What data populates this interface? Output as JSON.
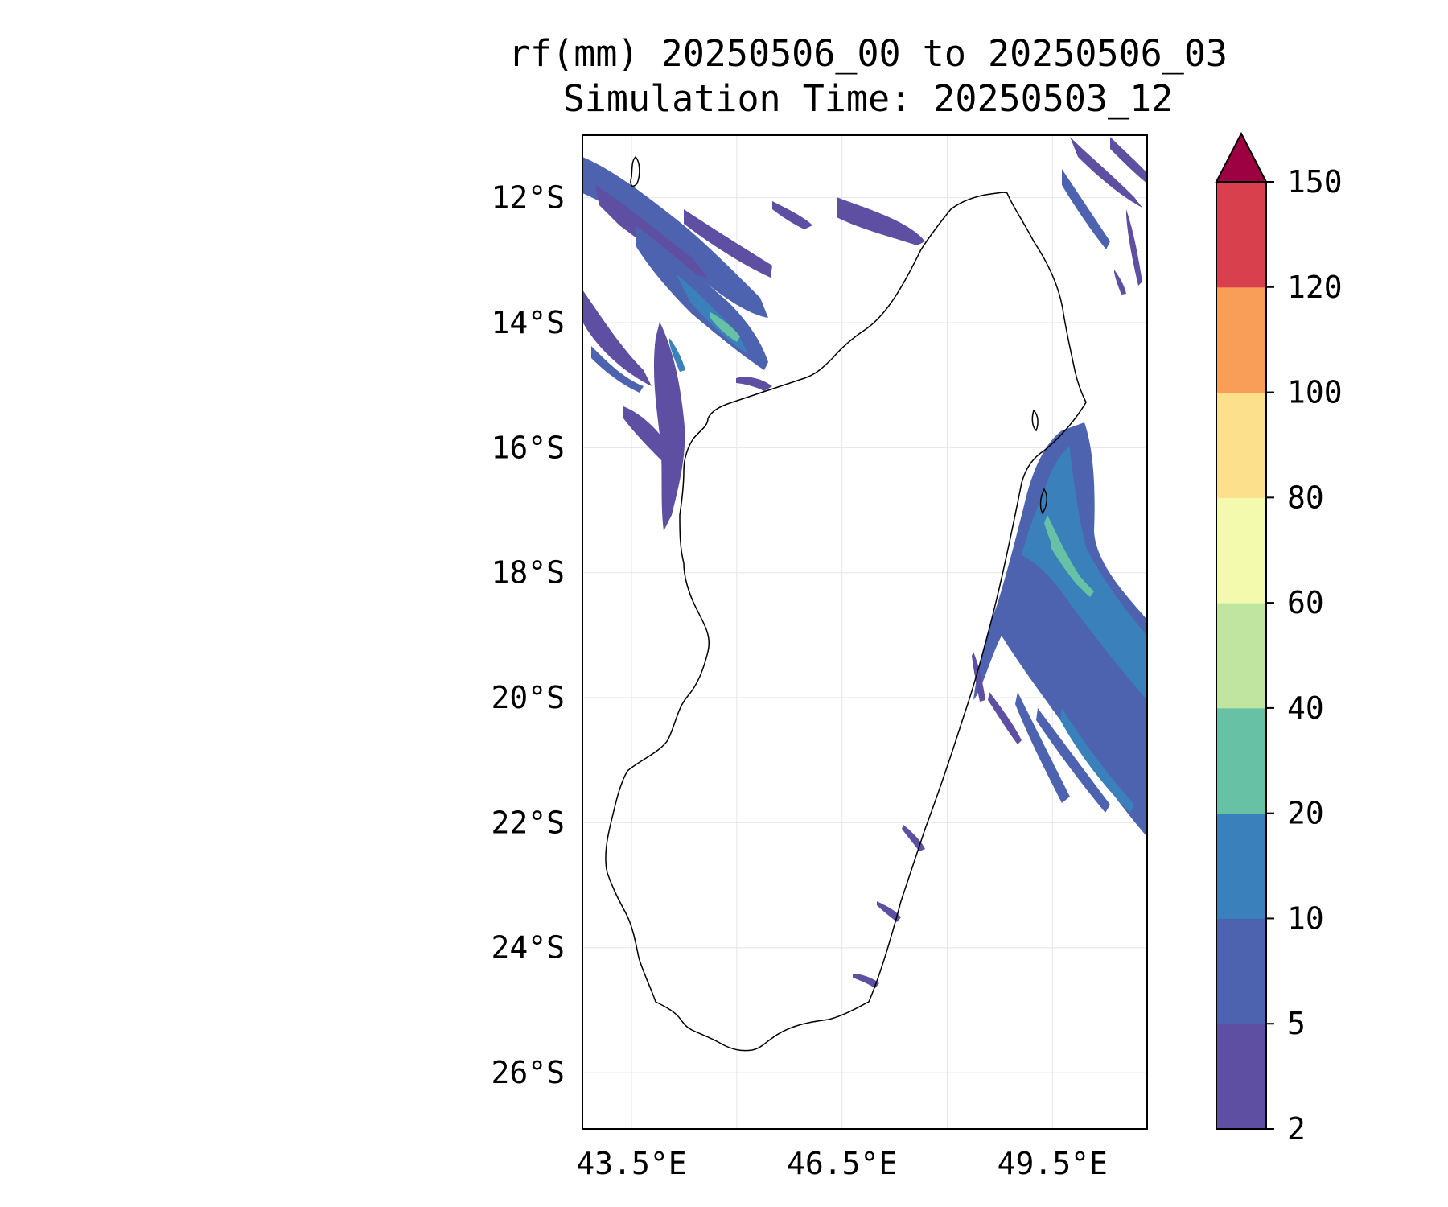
{
  "title": {
    "line1": "rf(mm) 20250506_00 to 20250506_03",
    "line2": "Simulation Time: 20250503_12"
  },
  "map": {
    "region": "Madagascar",
    "lon_range": [
      42.8,
      50.85
    ],
    "lat_range": [
      -26.9,
      -11.0
    ],
    "lat_ticks": [
      {
        "value": -12,
        "label": "12°S"
      },
      {
        "value": -14,
        "label": "14°S"
      },
      {
        "value": -16,
        "label": "16°S"
      },
      {
        "value": -18,
        "label": "18°S"
      },
      {
        "value": -20,
        "label": "20°S"
      },
      {
        "value": -22,
        "label": "22°S"
      },
      {
        "value": -24,
        "label": "24°S"
      },
      {
        "value": -26,
        "label": "26°S"
      }
    ],
    "lon_ticks": [
      {
        "value": 43.5,
        "label": "43.5°E"
      },
      {
        "value": 46.5,
        "label": "46.5°E"
      },
      {
        "value": 49.5,
        "label": "49.5°E"
      }
    ],
    "grid_lons": [
      43.5,
      45.0,
      46.5,
      48.0,
      49.5,
      51.0
    ],
    "grid": true
  },
  "colorbar": {
    "unit": "mm",
    "extend": "max",
    "levels": [
      {
        "label": "2",
        "color": "#5e4fa2"
      },
      {
        "label": "5",
        "color": "#4e63b0"
      },
      {
        "label": "10",
        "color": "#3a80bb"
      },
      {
        "label": "20",
        "color": "#66c1a5"
      },
      {
        "label": "40",
        "color": "#bfe5a0"
      },
      {
        "label": "60",
        "color": "#f4faad"
      },
      {
        "label": "80",
        "color": "#fde08b"
      },
      {
        "label": "100",
        "color": "#f99e59"
      },
      {
        "label": "120",
        "color": "#d8404e"
      },
      {
        "label": "150",
        "color": "#9e0142"
      }
    ]
  }
}
